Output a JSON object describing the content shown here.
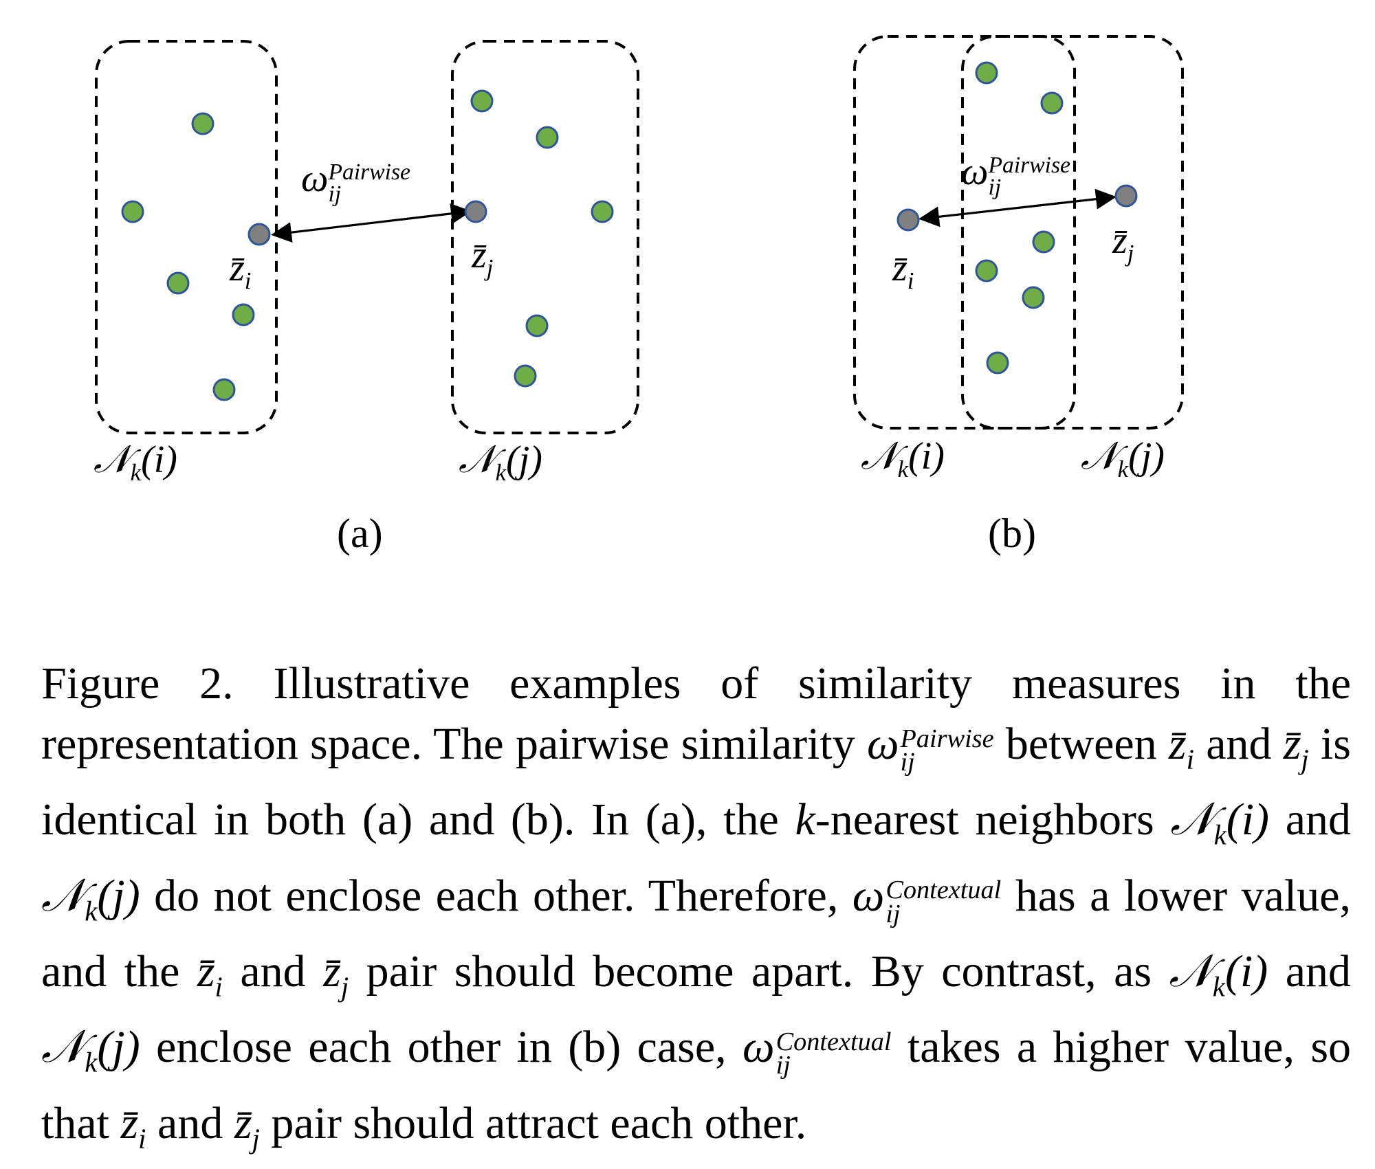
{
  "figure": {
    "panel_a": {
      "label": "(a)",
      "omega_symbol": "ω",
      "omega_sup": "Pairwise",
      "omega_sub": "ij",
      "zi_label": "z̄",
      "zi_sub": "i",
      "zj_label": "z̄",
      "zj_sub": "j",
      "ni_label": "𝒩",
      "ni_sub": "k",
      "ni_arg": "(i)",
      "nj_label": "𝒩",
      "nj_sub": "k",
      "nj_arg": "(j)"
    },
    "panel_b": {
      "label": "(b)",
      "omega_symbol": "ω",
      "omega_sup": "Pairwise",
      "omega_sub": "ij",
      "zi_label": "z̄",
      "zi_sub": "i",
      "zj_label": "z̄",
      "zj_sub": "j",
      "ni_label": "𝒩",
      "ni_sub": "k",
      "ni_arg": "(i)",
      "nj_label": "𝒩",
      "nj_sub": "k",
      "nj_arg": "(j)"
    },
    "colors": {
      "neighbor_fill": "#70AD47",
      "neighbor_stroke": "#2F5597",
      "anchor_fill": "#808080",
      "box_stroke": "#000000"
    }
  },
  "caption": {
    "t1": "Figure 2.  Illustrative examples of similarity measures in the representation space.  The pairwise similarity ",
    "w1_sym": "ω",
    "w1_sup": "Pairwise",
    "w1_sub": "ij",
    "t2": " between ",
    "zi1": "z̄",
    "zi1_sub": "i",
    "t3": " and ",
    "zj1": "z̄",
    "zj1_sub": "j",
    "t4": " is identical in both (a) and (b).  In (a), the ",
    "k1": "k",
    "t5": "-nearest neighbors ",
    "n1": "𝒩",
    "n1_sub": "k",
    "n1_arg": "(i)",
    "t6": " and ",
    "n2": "𝒩",
    "n2_sub": "k",
    "n2_arg": "(j)",
    "t7": " do not enclose each other. Therefore, ",
    "w2_sym": "ω",
    "w2_sup": "Contextual",
    "w2_sub": "ij",
    "t8": " has a lower value, and the ",
    "zi2": "z̄",
    "zi2_sub": "i",
    "t9": " and ",
    "zj2": "z̄",
    "zj2_sub": "j",
    "t10": " pair should become apart.  By contrast, as ",
    "n3": "𝒩",
    "n3_sub": "k",
    "n3_arg": "(i)",
    "t11": " and ",
    "n4": "𝒩",
    "n4_sub": "k",
    "n4_arg": "(j)",
    "t12": " enclose each other in (b) case, ",
    "w3_sym": "ω",
    "w3_sup": "Contextual",
    "w3_sub": "ij",
    "t13": " takes a higher value, so that ",
    "zi3": "z̄",
    "zi3_sub": "i",
    "t14": " and ",
    "zj3": "z̄",
    "zj3_sub": "j",
    "t15": " pair should attract each other."
  }
}
